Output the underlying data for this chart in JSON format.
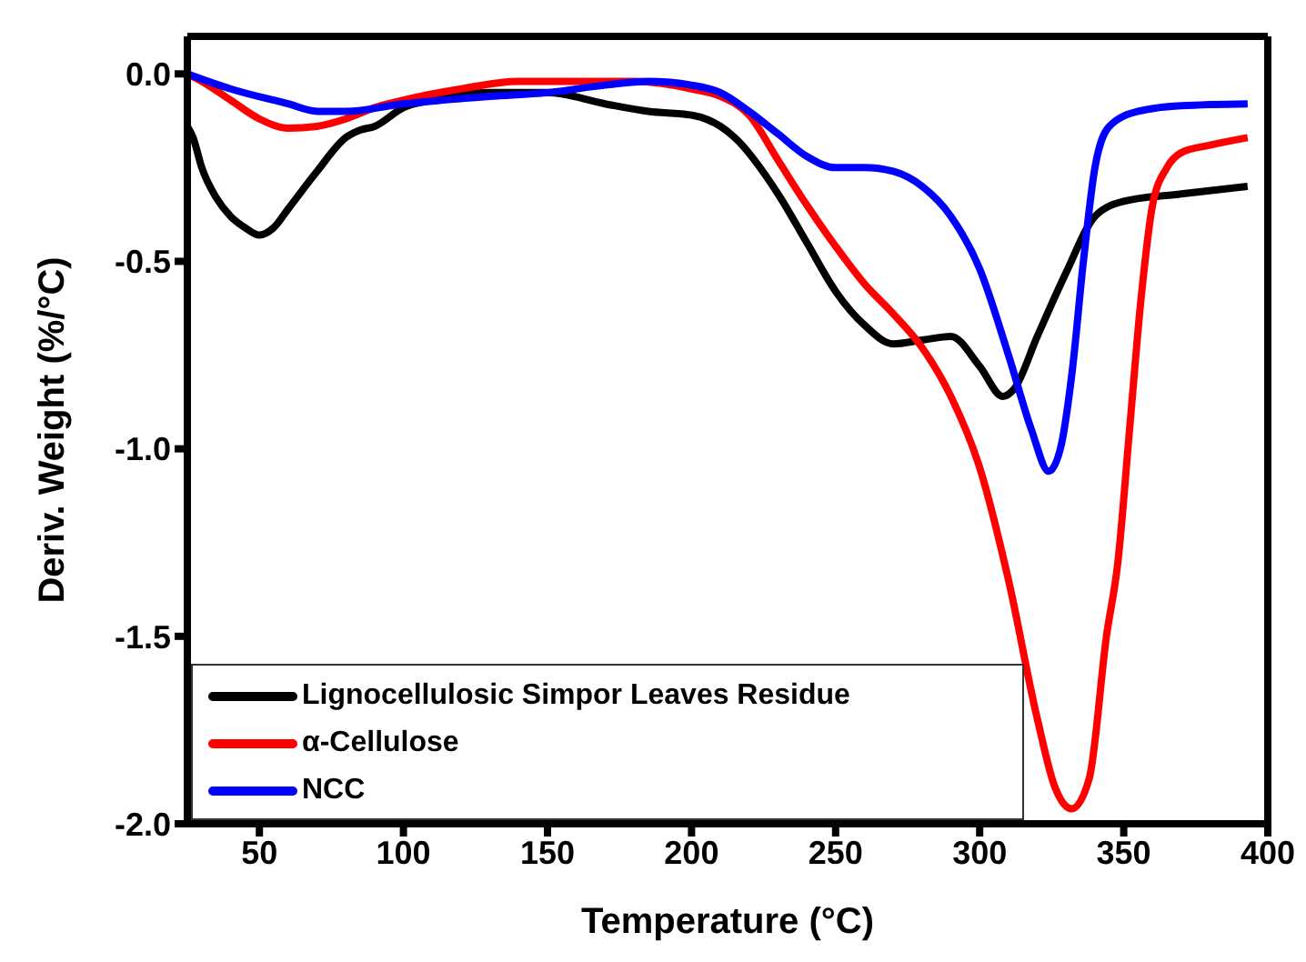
{
  "chart_data": {
    "type": "line",
    "xlabel": "Temperature (°C)",
    "ylabel": "Deriv. Weight (%/°C)",
    "xlim": [
      25,
      400
    ],
    "ylim": [
      -2.0,
      0.1
    ],
    "xticks": [
      50,
      100,
      150,
      200,
      250,
      300,
      350,
      400
    ],
    "yticks": [
      {
        "value": -2.0,
        "label": "-2.0"
      },
      {
        "value": -1.5,
        "label": "-1.5"
      },
      {
        "value": -1.0,
        "label": "-1.0"
      },
      {
        "value": -0.5,
        "label": "-0.5"
      },
      {
        "value": 0.0,
        "label": "0.0"
      }
    ],
    "legend": "bottom left",
    "line_style": "solid",
    "marker": "none",
    "series": [
      {
        "name": "Lignocellulosic Simpor Leaves Residue",
        "color": "#000000",
        "x": [
          25,
          27,
          30,
          35,
          40,
          45,
          50,
          55,
          60,
          70,
          80,
          85,
          90,
          100,
          110,
          130,
          150,
          170,
          185,
          200,
          210,
          215,
          230,
          240,
          250,
          260,
          270,
          280,
          290,
          300,
          308,
          312,
          320,
          330,
          340,
          350,
          370,
          393
        ],
        "values": [
          -0.14,
          -0.17,
          -0.25,
          -0.33,
          -0.38,
          -0.41,
          -0.43,
          -0.41,
          -0.36,
          -0.26,
          -0.17,
          -0.15,
          -0.14,
          -0.09,
          -0.07,
          -0.05,
          -0.05,
          -0.08,
          -0.1,
          -0.11,
          -0.14,
          -0.17,
          -0.32,
          -0.45,
          -0.58,
          -0.67,
          -0.72,
          -0.71,
          -0.7,
          -0.78,
          -0.86,
          -0.84,
          -0.7,
          -0.53,
          -0.38,
          -0.34,
          -0.32,
          -0.3
        ]
      },
      {
        "name": "α-Cellulose",
        "color": "#ff0000",
        "x": [
          25,
          30,
          40,
          50,
          60,
          70,
          80,
          90,
          100,
          120,
          140,
          160,
          180,
          200,
          210,
          220,
          230,
          240,
          250,
          260,
          270,
          280,
          290,
          300,
          310,
          320,
          326,
          332,
          338,
          344,
          348,
          352,
          356,
          360,
          365,
          370,
          380,
          393
        ],
        "values": [
          0.0,
          -0.02,
          -0.07,
          -0.12,
          -0.145,
          -0.14,
          -0.12,
          -0.09,
          -0.07,
          -0.04,
          -0.02,
          -0.02,
          -0.02,
          -0.04,
          -0.06,
          -0.11,
          -0.23,
          -0.35,
          -0.46,
          -0.56,
          -0.64,
          -0.73,
          -0.86,
          -1.05,
          -1.35,
          -1.72,
          -1.9,
          -1.96,
          -1.88,
          -1.5,
          -1.3,
          -0.95,
          -0.6,
          -0.35,
          -0.25,
          -0.21,
          -0.19,
          -0.17
        ]
      },
      {
        "name": "NCC",
        "color": "#0000ff",
        "x": [
          25,
          40,
          60,
          70,
          80,
          100,
          130,
          150,
          170,
          185,
          200,
          210,
          220,
          230,
          240,
          250,
          260,
          270,
          280,
          290,
          300,
          310,
          318,
          324,
          328,
          332,
          336,
          340,
          345,
          355,
          370,
          393
        ],
        "values": [
          0.0,
          -0.04,
          -0.08,
          -0.1,
          -0.1,
          -0.08,
          -0.06,
          -0.05,
          -0.03,
          -0.02,
          -0.03,
          -0.05,
          -0.1,
          -0.16,
          -0.22,
          -0.25,
          -0.25,
          -0.26,
          -0.3,
          -0.38,
          -0.52,
          -0.75,
          -0.95,
          -1.06,
          -1.0,
          -0.8,
          -0.5,
          -0.25,
          -0.14,
          -0.1,
          -0.085,
          -0.08
        ]
      }
    ]
  }
}
